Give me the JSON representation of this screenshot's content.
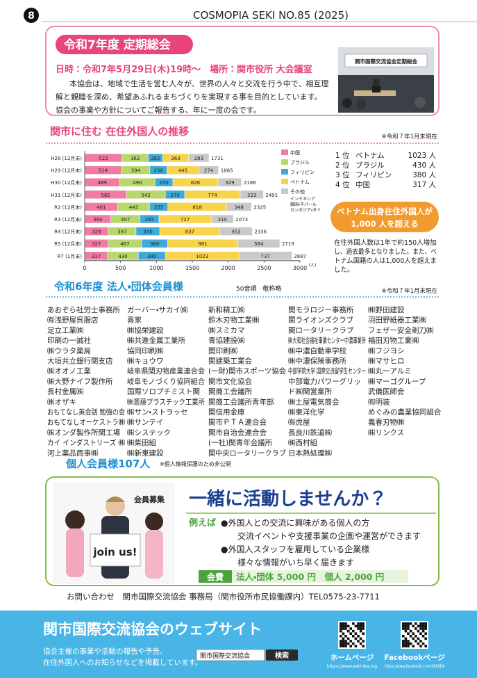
{
  "header": {
    "page_number": "8",
    "issue": "COSMOPIA SEKI NO.85 (2025)"
  },
  "meeting": {
    "title": "令和7年度 定期総会",
    "datetime": "日時：令和7年5月29日(木)19時～　場所：関市役所 大会議室",
    "body": [
      "本協会は、地域で生活を営む人々が、世界の人々と交流を行う中で、相互理",
      "解と親睦を深め、希望あふれるまちづくりを実現する事を目的としています。",
      "協会の事業や方針についてご報告する、年に一度の会です。"
    ],
    "photo_sign": "関市国際交流協会定期総会"
  },
  "chart_data": {
    "type": "bar",
    "orientation": "horizontal",
    "stacked": true,
    "title": "関市に住む 在住外国人の推移",
    "note": "※令和７年1月末現在",
    "categories": [
      "H28 (12月末)",
      "H29 (12月末)",
      "H30 (12月末)",
      "H31 (12月末)",
      "R2 (12月末)",
      "R3 (12月末)",
      "R4 (12月末)",
      "R5 (12月末)",
      "R7 (1月末)"
    ],
    "series": [
      {
        "name": "中国",
        "color": "#f17ba2",
        "values": [
          522,
          514,
          489,
          582,
          461,
          364,
          329,
          327,
          317
        ]
      },
      {
        "name": "ブラジル",
        "color": "#b8d86e",
        "values": [
          362,
          394,
          490,
          542,
          443,
          407,
          387,
          467,
          430
        ]
      },
      {
        "name": "フィリピン",
        "color": "#3eaad9",
        "values": [
          202,
          238,
          250,
          270,
          255,
          265,
          330,
          360,
          380
        ]
      },
      {
        "name": "ベトナム",
        "color": "#f8d34c",
        "values": [
          363,
          445,
          628,
          774,
          818,
          727,
          837,
          981,
          1023
        ]
      },
      {
        "name": "その他",
        "color": "#c9c9c9",
        "values": [
          283,
          274,
          329,
          323,
          348,
          310,
          453,
          584,
          737
        ]
      }
    ],
    "legend_note": [
      "インドネシア",
      "韓国・ネパール",
      "カンボジア・タイ"
    ],
    "totals": [
      1731,
      1865,
      2186,
      2491,
      2325,
      2073,
      2336,
      2719,
      2887
    ],
    "xlim": [
      0,
      3000
    ],
    "xticks": [
      0,
      500,
      1000,
      1500,
      2000,
      2500,
      3000
    ],
    "xlabel": "(人)"
  },
  "ranking": [
    {
      "rank": "1 位",
      "name": "ベトナム",
      "count": "1023 人"
    },
    {
      "rank": "2 位",
      "name": "ブラジル",
      "count": "430 人"
    },
    {
      "rank": "3 位",
      "name": "フィリピン",
      "count": "380 人"
    },
    {
      "rank": "4 位",
      "name": "中国",
      "count": "317 人"
    }
  ],
  "callout": [
    "ベトナム出身在住外国人が",
    "1,000 人を超える"
  ],
  "summary": [
    "在住外国人数は1年で約150人増加",
    "し、過去最多となりました。また、ベ",
    "トナム国籍の人は1,000人を超えま",
    "した。"
  ],
  "members": {
    "title": "令和6年度 法人・団体会員様",
    "sort_note": "50音順　敬称略",
    "note": "※令和７年1月末現在",
    "columns": [
      [
        "あおぞら社労士事務所",
        "㈲浅野屋呉服店",
        "足立工業㈱",
        "印刷の一誠社",
        "㈱ウラタ薬局",
        "大垣共立銀行関支店",
        "㈱オオノ工業",
        "㈱大野ナイフ製作所",
        "長村金属㈱",
        "㈱オザキ",
        "おもてなし英会話 勉強の会",
        "おもてなしオーケストラ㈱",
        "㈱オンダ製作所関工場",
        "カイ インダストリーズ ㈱",
        "河上薬品商事㈱"
      ],
      [
        "ガーバー・サカイ㈱",
        "喜家",
        "㈱協栄建設",
        "㈱共進金属工業所",
        "協同印刷㈱",
        "㈱キョウワ",
        "岐阜県関刃物産業連合会",
        "岐阜モノづくり協同組合",
        "国際ソロプチミスト関",
        "㈱斎藤プラスチック工業所",
        "㈱サン・ストラッセ",
        "㈱サンテイ",
        "㈱システック",
        "㈱柴田組",
        "㈱新東建設"
      ],
      [
        "新和精工㈱",
        "鈴木刃物工業㈱",
        "㈱スミカマ",
        "青協建設㈱",
        "関印刷㈱",
        "関建築工業会",
        "(一財)関市スポーツ協会",
        "関市文化協会",
        "関商工会議所",
        "関商工会議所青年部",
        "関信用金庫",
        "関市ＰＴＡ連合会",
        "関市自治会連合会",
        "(一社)関青年会議所",
        "関中央ロータリークラブ"
      ],
      [
        "関モラロジー事務所",
        "関ライオンズクラブ",
        "関ロータリークラブ",
        "㈱大和社会福祉事業センター中濃事業所",
        "㈱中濃自動車学校",
        "㈱中濃保険事務所",
        "中部学院大学 国際交流留学生センター",
        "中部電力パワーグリッ",
        "ド㈱関営業所",
        "㈱土屋電気商会",
        "㈱東洋化学",
        "㈲虎屋",
        "長良川鉄道㈱",
        "㈱西村組",
        "日本熱処理㈱"
      ],
      [
        "㈱野田建設",
        "羽田野紙器工業㈱",
        "フェザー安全剃刀㈱",
        "福田刃物工業㈱",
        "㈱フジヨシ",
        "㈱マサヒロ",
        "㈱丸一アルミ",
        "㈱マーゴグループ",
        "武儀医師会",
        "㈲明装",
        "めぐみの農業協同組合",
        "義春刃物㈱",
        "㈱リンクス"
      ]
    ],
    "individual": "個人会員様107人",
    "individual_note": "※個人情報保護のため非公開"
  },
  "recruit": {
    "badge": "会員募集",
    "sign": "join us!",
    "headline": "一緒に活動しませんか？",
    "example_label": "例えば",
    "lines": [
      "●外国人との交流に興味がある個人の方",
      "交流イベントや支援事業の企画や運営ができます",
      "●外国人スタッフを雇用している企業様",
      "様々な情報がいち早く届きます"
    ],
    "fee_label": "会費",
    "fee": "法人・団体 5,000 円　個人 2,000 円",
    "contact": "お問い合わせ　関市国際交流協会 事務局（関市役所市民協働課内）TEL0575-23-7711"
  },
  "footer": {
    "title": "関市国際交流協会のウェブサイト",
    "text": [
      "協会主催の事業や活動の報告や予告、",
      "在住外国人へのお知らせなどを掲載しています。"
    ],
    "search_query": "関市国際交流協会",
    "search_button": "検索",
    "links": [
      {
        "label": "ホームページ",
        "url": "https://www.seki-iea.org"
      },
      {
        "label": "Facebookページ",
        "url": "https://www.facebook.com/SEKIIEA"
      }
    ]
  }
}
